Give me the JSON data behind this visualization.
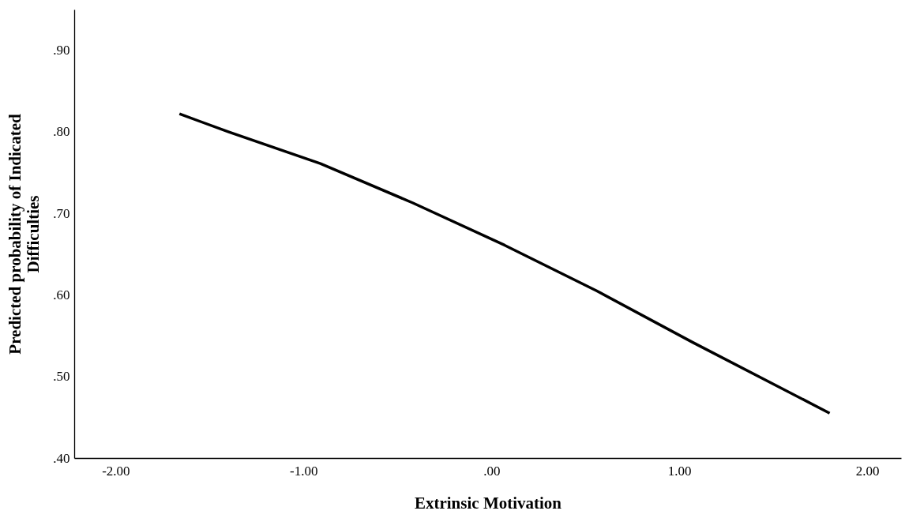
{
  "chart_data": {
    "type": "line",
    "xlabel": "Extrinsic Motivation",
    "ylabel": "Predicted probability of Indicated Difficulties",
    "x": [
      -1.66,
      -1.4,
      -0.91,
      -0.42,
      0.07,
      0.56,
      1.07,
      1.8
    ],
    "series": [
      {
        "color": "#000000",
        "values": [
          0.822,
          0.8,
          0.761,
          0.713,
          0.661,
          0.605,
          0.542,
          0.455
        ]
      }
    ],
    "xlim": [
      -2.22,
      2.18
    ],
    "xticks": [
      {
        "value": -2,
        "label": "-2.00"
      },
      {
        "value": -1,
        "label": "-1.00"
      },
      {
        "value": 0,
        "label": ".00"
      },
      {
        "value": 1,
        "label": "1.00"
      },
      {
        "value": 2,
        "label": "2.00"
      }
    ],
    "ylim": [
      0.4,
      0.95
    ],
    "yticks": [
      {
        "value": 0.4,
        "label": ".40"
      },
      {
        "value": 0.5,
        "label": ".50"
      },
      {
        "value": 0.6,
        "label": ".60"
      },
      {
        "value": 0.7,
        "label": ".70"
      },
      {
        "value": 0.8,
        "label": ".80"
      },
      {
        "value": 0.9,
        "label": ".90"
      }
    ],
    "grid": false,
    "marker": "none",
    "line_style": "solid"
  }
}
